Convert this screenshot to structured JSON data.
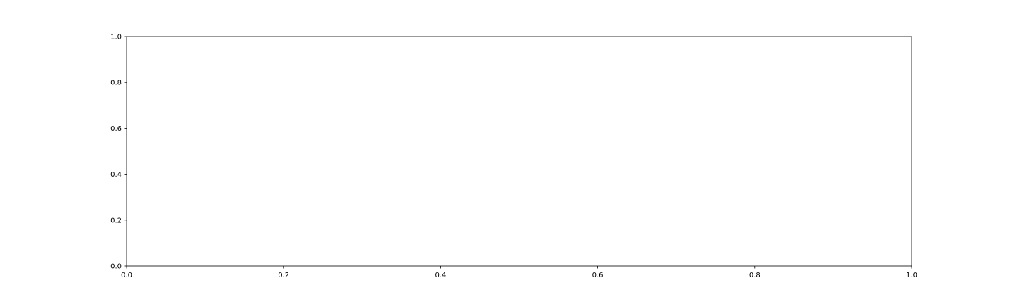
{
  "chart_data": {
    "type": "line",
    "title": "",
    "xlabel": "",
    "ylabel": "",
    "xlim": [
      0.0,
      1.0
    ],
    "ylim": [
      0.0,
      1.0
    ],
    "x_ticks": [
      "0.0",
      "0.2",
      "0.4",
      "0.6",
      "0.8",
      "1.0"
    ],
    "y_ticks": [
      "0.0",
      "0.2",
      "0.4",
      "0.6",
      "0.8",
      "1.0"
    ],
    "series": [],
    "grid": false,
    "colors": {
      "axis": "#000000",
      "background": "#ffffff"
    }
  }
}
